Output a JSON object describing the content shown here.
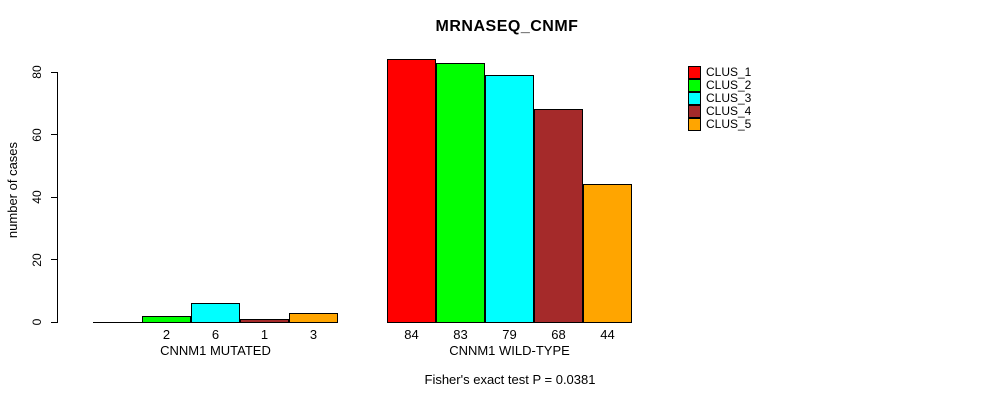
{
  "title": "MRNASEQ_CNMF",
  "ylabel": "number of cases",
  "caption": "Fisher's exact test P = 0.0381",
  "legend": [
    {
      "label": "CLUS_1",
      "color": "#FF0000"
    },
    {
      "label": "CLUS_2",
      "color": "#00FF00"
    },
    {
      "label": "CLUS_3",
      "color": "#00FFFF"
    },
    {
      "label": "CLUS_4",
      "color": "#A52A2A"
    },
    {
      "label": "CLUS_5",
      "color": "#FFA500"
    }
  ],
  "chart_data": {
    "type": "bar",
    "title": "MRNASEQ_CNMF",
    "xlabel": "",
    "ylabel": "number of cases",
    "ylim": [
      0,
      80
    ],
    "yticks": [
      0,
      20,
      40,
      60,
      80
    ],
    "grid": false,
    "legend_position": "right",
    "series_names": [
      "CLUS_1",
      "CLUS_2",
      "CLUS_3",
      "CLUS_4",
      "CLUS_5"
    ],
    "series_colors": [
      "#FF0000",
      "#00FF00",
      "#00FFFF",
      "#A52A2A",
      "#FFA500"
    ],
    "groups": [
      {
        "label": "CNNM1 MUTATED",
        "values": [
          0,
          2,
          6,
          1,
          3
        ],
        "value_labels": [
          "",
          "2",
          "6",
          "1",
          "3"
        ]
      },
      {
        "label": "CNNM1 WILD-TYPE",
        "values": [
          84,
          83,
          79,
          68,
          44
        ],
        "value_labels": [
          "84",
          "83",
          "79",
          "68",
          "44"
        ]
      }
    ],
    "annotation": "Fisher's exact test P = 0.0381"
  }
}
